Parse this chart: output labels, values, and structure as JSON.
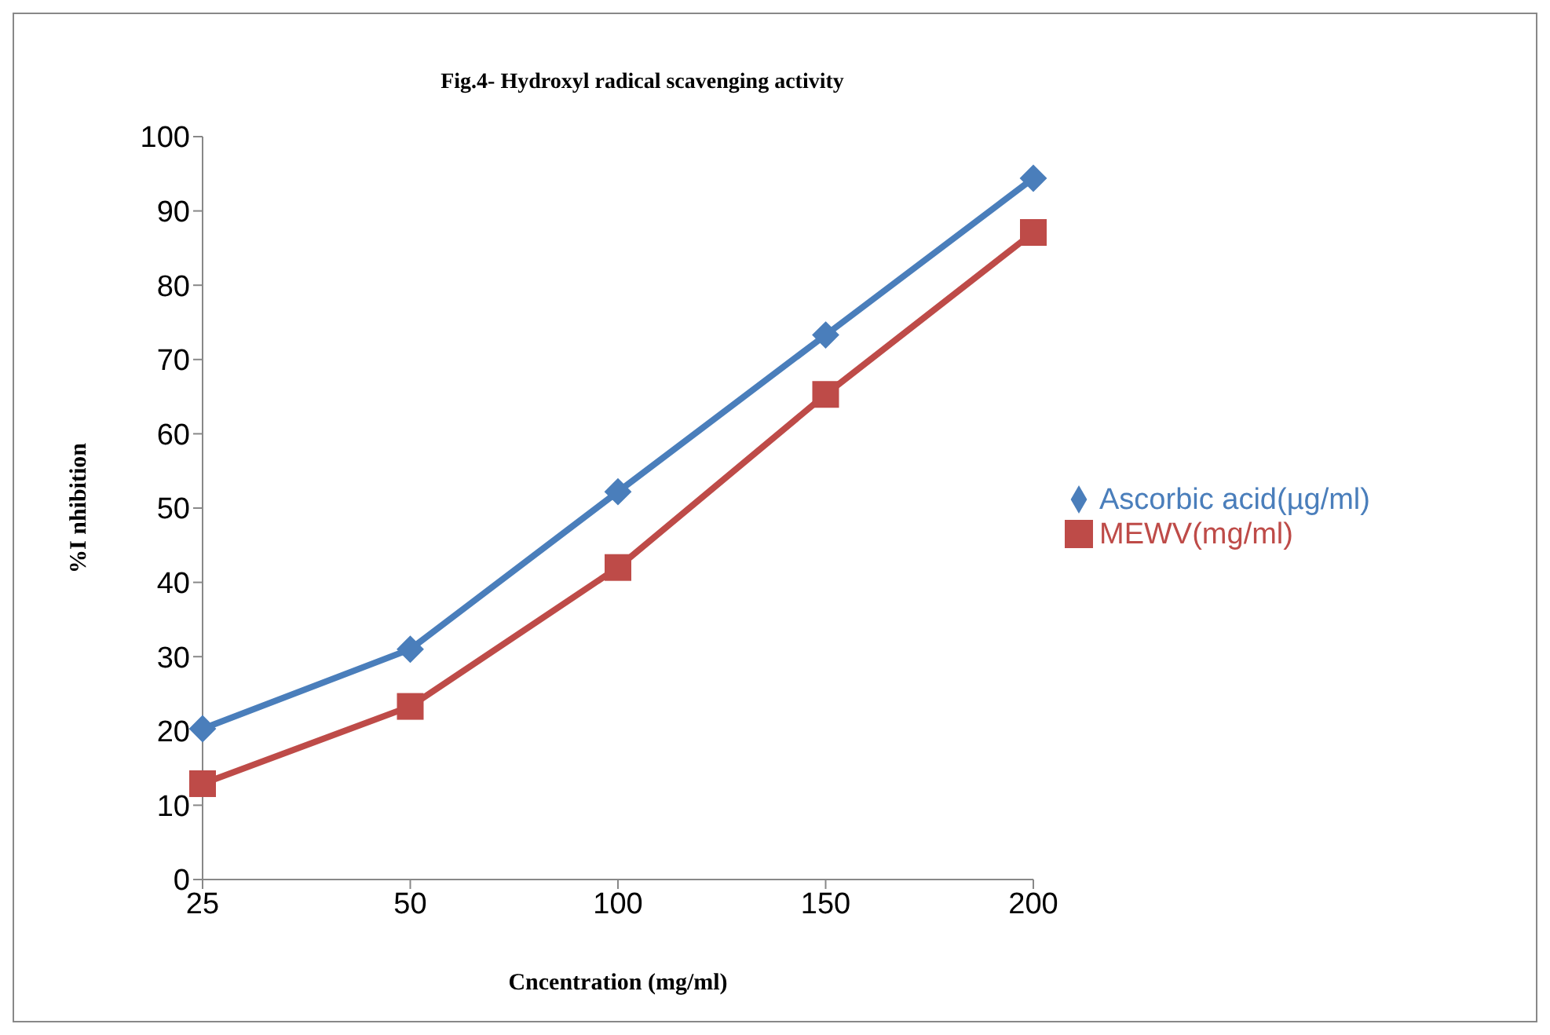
{
  "chart_data": {
    "type": "line",
    "title": "Fig.4- Hydroxyl radical scavenging activity",
    "xlabel": "Cncentration (mg/ml)",
    "ylabel": "%I nhibition",
    "categories": [
      "25",
      "50",
      "100",
      "150",
      "200"
    ],
    "series": [
      {
        "name": "Ascorbic acid(µg/ml)",
        "color": "#4a7ebb",
        "marker": "diamond",
        "values": [
          20.3,
          31.0,
          52.2,
          73.3,
          94.4
        ]
      },
      {
        "name": "MEWV(mg/ml)",
        "color": "#be4b48",
        "marker": "square",
        "values": [
          12.9,
          23.3,
          42.0,
          65.3,
          87.1
        ]
      }
    ],
    "ylim": [
      0,
      100
    ],
    "yticks": [
      0,
      10,
      20,
      30,
      40,
      50,
      60,
      70,
      80,
      90,
      100
    ],
    "legend": "right"
  }
}
